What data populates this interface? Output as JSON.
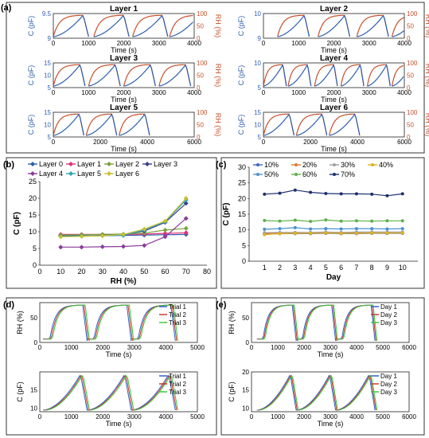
{
  "colors": {
    "cap": "#2e5fb0",
    "rh": "#c8502a",
    "frame": "#222222",
    "l0": "#2a5cae",
    "l1": "#e0307a",
    "l2": "#7aa23a",
    "l3": "#3c3c8c",
    "l4": "#8a3b9a",
    "l5": "#2aa6b8",
    "l6": "#c8c032",
    "d10": "#3a66c8",
    "d20": "#e07a30",
    "d30": "#a0a0a0",
    "d40": "#e0b020",
    "d50": "#4a90d0",
    "d60": "#5cb04a",
    "d70": "#1e2f6e",
    "t1": "#3060d0",
    "t2": "#c83c2a",
    "t3": "#3cc83c"
  },
  "panel_labels": {
    "a": "(a)",
    "b": "(b)",
    "c": "(c)",
    "d": "(d)",
    "e": "(e)"
  },
  "chart_data": [
    {
      "type": "line",
      "panel": "(a)",
      "title": "Layer 1",
      "xlabel": "Time (s)",
      "ylabel_left": "C (pF)",
      "ylabel_right": "RH (%)",
      "xlim": [
        0,
        4000
      ],
      "xticks": [
        "0",
        "1000",
        "2000",
        "3000",
        "4000"
      ],
      "ylim_left": [
        9,
        9.5
      ],
      "yticks_left": [
        "9",
        "9.5"
      ],
      "ylim_right": [
        0,
        100
      ],
      "yticks_right": [
        "0",
        "50",
        "100"
      ],
      "cycles": [
        0,
        1150,
        2250,
        3300
      ],
      "cycle_len": 1000
    },
    {
      "type": "line",
      "panel": "(a)",
      "title": "Layer 2",
      "xlabel": "Time (s)",
      "ylabel_left": "C (pF)",
      "ylabel_right": "RH (%)",
      "xlim": [
        0,
        4000
      ],
      "xticks": [
        "0",
        "1000",
        "2000",
        "3000",
        "4000"
      ],
      "ylim_left": [
        9,
        10
      ],
      "yticks_left": [
        "9",
        "10"
      ],
      "ylim_right": [
        0,
        100
      ],
      "yticks_right": [
        "0",
        "50",
        "100"
      ],
      "cycles": [
        400,
        1550,
        2650,
        3650
      ],
      "cycle_len": 900
    },
    {
      "type": "line",
      "panel": "(a)",
      "title": "Layer 3",
      "xlabel": "Time (s)",
      "ylabel_left": "C (pF)",
      "ylabel_right": "RH (%)",
      "xlim": [
        0,
        4000
      ],
      "xticks": [
        "0",
        "1000",
        "2000",
        "3000",
        "4000"
      ],
      "ylim_left": [
        5,
        15
      ],
      "yticks_left": [
        "5",
        "10",
        "15"
      ],
      "ylim_right": [
        0,
        100
      ],
      "yticks_right": [
        "0",
        "50",
        "100"
      ],
      "cycles": [
        0,
        1000,
        2000,
        3000
      ],
      "cycle_len": 900
    },
    {
      "type": "line",
      "panel": "(a)",
      "title": "Layer 4",
      "xlabel": "Time (s)",
      "ylabel_left": "C (pF)",
      "ylabel_right": "RH (%)",
      "xlim": [
        0,
        4000
      ],
      "xticks": [
        "0",
        "1000",
        "2000",
        "3000",
        "4000"
      ],
      "ylim_left": [
        5,
        10
      ],
      "yticks_left": [
        "5",
        "10"
      ],
      "ylim_right": [
        0,
        100
      ],
      "yticks_right": [
        "0",
        "50",
        "100"
      ],
      "cycles": [
        0,
        700,
        1450,
        2200,
        2950,
        3650
      ],
      "cycle_len": 650
    },
    {
      "type": "line",
      "panel": "(a)",
      "title": "Layer 5",
      "xlabel": "Time (s)",
      "ylabel_left": "C (pF)",
      "ylabel_right": "RH (%)",
      "xlim": [
        0,
        6000
      ],
      "xticks": [
        "0",
        "2000",
        "4000",
        "6000"
      ],
      "ylim_left": [
        5,
        15
      ],
      "yticks_left": [
        "5",
        "10",
        "15"
      ],
      "ylim_right": [
        0,
        100
      ],
      "yticks_right": [
        "0",
        "50",
        "100"
      ],
      "cycles": [
        0,
        1400,
        2800
      ],
      "cycle_len": 1300
    },
    {
      "type": "line",
      "panel": "(a)",
      "title": "Layer 6",
      "xlabel": "Time (s)",
      "ylabel_left": "C (pF)",
      "ylabel_right": "RH (%)",
      "xlim": [
        0,
        6000
      ],
      "xticks": [
        "0",
        "2000",
        "4000",
        "6000"
      ],
      "ylim_left": [
        5,
        15
      ],
      "yticks_left": [
        "5",
        "10",
        "15"
      ],
      "ylim_right": [
        0,
        100
      ],
      "yticks_right": [
        "0",
        "50",
        "100"
      ],
      "cycles": [
        0,
        1400,
        2800
      ],
      "cycle_len": 1300
    },
    {
      "type": "line",
      "panel": "(b)",
      "xlabel": "RH (%)",
      "ylabel": "C (pF)",
      "xlim": [
        0,
        80
      ],
      "ylim": [
        0,
        25
      ],
      "xticks": [
        "0",
        "10",
        "20",
        "30",
        "40",
        "50",
        "60",
        "70",
        "80"
      ],
      "yticks": [
        "0",
        "5",
        "10",
        "15",
        "20",
        "25"
      ],
      "x": [
        10,
        20,
        30,
        40,
        50,
        60,
        70
      ],
      "series": [
        {
          "name": "Layer 0",
          "color_key": "l0",
          "values": [
            8.8,
            8.8,
            8.8,
            8.9,
            9.0,
            9.1,
            9.2
          ]
        },
        {
          "name": "Layer 1",
          "color_key": "l1",
          "values": [
            9.2,
            9.2,
            9.2,
            9.2,
            9.3,
            9.5,
            9.7
          ]
        },
        {
          "name": "Layer 2",
          "color_key": "l2",
          "values": [
            9.0,
            9.1,
            9.2,
            9.3,
            9.6,
            10.5,
            11.0
          ]
        },
        {
          "name": "Layer 3",
          "color_key": "l3",
          "values": [
            8.6,
            8.7,
            8.9,
            9.2,
            10.2,
            12.8,
            18.5
          ]
        },
        {
          "name": "Layer 4",
          "color_key": "l4",
          "values": [
            5.4,
            5.4,
            5.5,
            5.6,
            5.9,
            8.5,
            14.0
          ]
        },
        {
          "name": "Layer 5",
          "color_key": "l5",
          "values": [
            8.6,
            8.7,
            8.8,
            9.0,
            10.5,
            13.0,
            19.5
          ]
        },
        {
          "name": "Layer 6",
          "color_key": "l6",
          "values": [
            8.5,
            8.6,
            8.8,
            9.2,
            10.8,
            13.2,
            20.0
          ]
        }
      ]
    },
    {
      "type": "line",
      "panel": "(c)",
      "xlabel": "Day",
      "ylabel": "C (pF)",
      "xlim": [
        0,
        11
      ],
      "ylim": [
        0,
        30
      ],
      "xticks": [
        "1",
        "2",
        "3",
        "4",
        "5",
        "6",
        "7",
        "8",
        "9",
        "10"
      ],
      "yticks": [
        "0",
        "5",
        "10",
        "15",
        "20",
        "25",
        "30"
      ],
      "x": [
        1,
        2,
        3,
        4,
        5,
        6,
        7,
        8,
        9,
        10
      ],
      "series": [
        {
          "name": "10%",
          "color_key": "d10",
          "values": [
            8.6,
            8.8,
            8.8,
            8.8,
            8.9,
            8.8,
            8.8,
            8.9,
            8.9,
            8.9
          ]
        },
        {
          "name": "20%",
          "color_key": "d20",
          "values": [
            8.9,
            9.0,
            9.0,
            9.0,
            9.1,
            9.0,
            9.0,
            9.1,
            9.1,
            9.1
          ]
        },
        {
          "name": "30%",
          "color_key": "d30",
          "values": [
            9.1,
            9.2,
            9.2,
            9.2,
            9.3,
            9.2,
            9.3,
            9.3,
            9.3,
            9.3
          ]
        },
        {
          "name": "40%",
          "color_key": "d40",
          "values": [
            8.5,
            8.8,
            8.9,
            8.9,
            9.0,
            8.9,
            8.9,
            9.0,
            9.0,
            9.0
          ]
        },
        {
          "name": "50%",
          "color_key": "d50",
          "values": [
            10.2,
            10.4,
            10.7,
            10.3,
            10.4,
            10.3,
            10.4,
            10.4,
            10.3,
            10.4
          ]
        },
        {
          "name": "60%",
          "color_key": "d60",
          "values": [
            13.0,
            12.8,
            13.1,
            12.7,
            13.2,
            12.8,
            12.9,
            12.8,
            12.9,
            12.9
          ]
        },
        {
          "name": "70%",
          "color_key": "d70",
          "values": [
            21.4,
            21.7,
            22.7,
            22.0,
            21.6,
            21.5,
            21.5,
            21.4,
            20.9,
            21.5
          ]
        }
      ]
    },
    {
      "type": "line",
      "panel": "(d)",
      "xlabel": "Time (s)",
      "ylabel_top": "RH (%)",
      "ylabel_bottom": "C (pF)",
      "xlim": [
        0,
        5000
      ],
      "xticks": [
        "0",
        "1000",
        "2000",
        "3000",
        "4000",
        "5000"
      ],
      "ylim_top": [
        0,
        80
      ],
      "yticks_top": [
        "0",
        "50"
      ],
      "ylim_bottom": [
        9,
        20
      ],
      "yticks_bottom": [
        "10",
        "15"
      ],
      "legend": [
        "Trial 1",
        "Trial 2",
        "Trial 3"
      ],
      "cycles": [
        100,
        1500,
        2900
      ],
      "cycle_len": 1400
    },
    {
      "type": "line",
      "panel": "(e)",
      "xlabel": "Time (s)",
      "ylabel_top": "RH (%)",
      "ylabel_bottom": "C (pF)",
      "xlim": [
        0,
        6000
      ],
      "xticks": [
        "0",
        "1000",
        "2000",
        "3000",
        "4000",
        "5000",
        "6000"
      ],
      "ylim_top": [
        0,
        80
      ],
      "yticks_top": [
        "0",
        "50"
      ],
      "ylim_bottom": [
        9,
        20
      ],
      "yticks_bottom": [
        "10",
        "15",
        "20"
      ],
      "legend": [
        "Day 1",
        "Day 2",
        "Day 3"
      ],
      "cycles": [
        200,
        1700,
        3200
      ],
      "cycle_len": 1500
    }
  ]
}
